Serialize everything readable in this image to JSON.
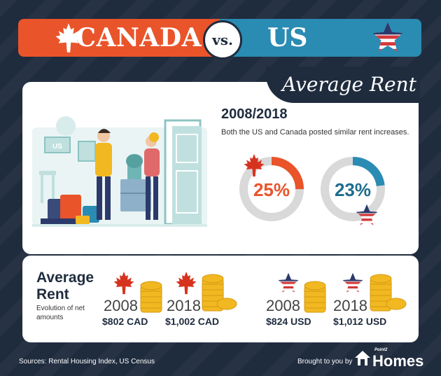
{
  "banner": {
    "left_title": "CANADA",
    "vs": "vs.",
    "right_title": "US"
  },
  "section": {
    "label": "Average Rent"
  },
  "summary": {
    "period": "2008/2018",
    "description": "Both the US and Canada posted similar rent increases."
  },
  "increases": [
    {
      "country": "Canada",
      "value": "25%",
      "fraction": 0.25,
      "color": "#e9542b"
    },
    {
      "country": "US",
      "value": "23%",
      "fraction": 0.23,
      "color": "#2a8bb3"
    }
  ],
  "average_rent": {
    "title_line1": "Average",
    "title_line2": "Rent",
    "subtitle": "Evolution of net amounts",
    "items": [
      {
        "year": "2008",
        "amount": "$802 CAD"
      },
      {
        "year": "2018",
        "amount": "$1,002 CAD"
      },
      {
        "year": "2008",
        "amount": "$824 USD"
      },
      {
        "year": "2018",
        "amount": "$1,012 USD"
      }
    ]
  },
  "illustration": {
    "sign_text": "US"
  },
  "footer": {
    "sources": "Sources: Rental Housing Index, US Census",
    "brought_by": "Brought to you by",
    "logo_small": "Point2",
    "logo": "Homes"
  },
  "colors": {
    "canada": "#e9542b",
    "us": "#2a8bb3",
    "navy": "#1f2c3e",
    "gold": "#f2b821"
  }
}
